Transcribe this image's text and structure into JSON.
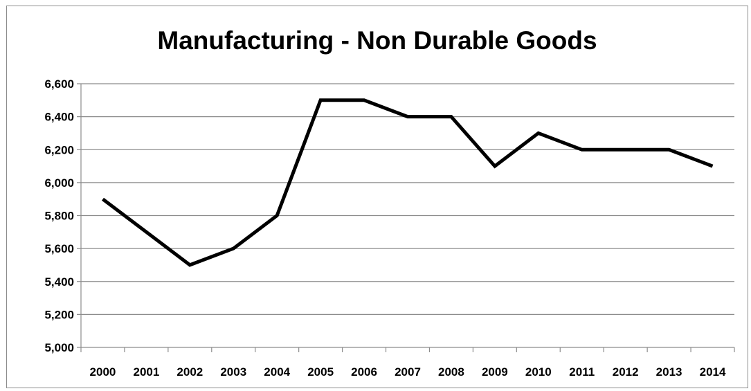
{
  "chart_data": {
    "type": "line",
    "title": "Manufacturing - Non Durable Goods",
    "xlabel": "",
    "ylabel": "",
    "categories": [
      "2000",
      "2001",
      "2002",
      "2003",
      "2004",
      "2005",
      "2006",
      "2007",
      "2008",
      "2009",
      "2010",
      "2011",
      "2012",
      "2013",
      "2014"
    ],
    "series": [
      {
        "values": [
          5900,
          5700,
          5500,
          5600,
          5800,
          6500,
          6500,
          6400,
          6400,
          6100,
          6300,
          6200,
          6200,
          6200,
          6100
        ]
      }
    ],
    "ylim": [
      5000,
      6600
    ],
    "yticks": [
      5000,
      5200,
      5400,
      5600,
      5800,
      6000,
      6200,
      6400,
      6600
    ],
    "ytick_labels": [
      "5,000",
      "5,200",
      "5,400",
      "5,600",
      "5,800",
      "6,000",
      "6,200",
      "6,400",
      "6,600"
    ],
    "grid": "horizontal",
    "line_color": "#000000",
    "grid_color": "#8c8c8c"
  }
}
